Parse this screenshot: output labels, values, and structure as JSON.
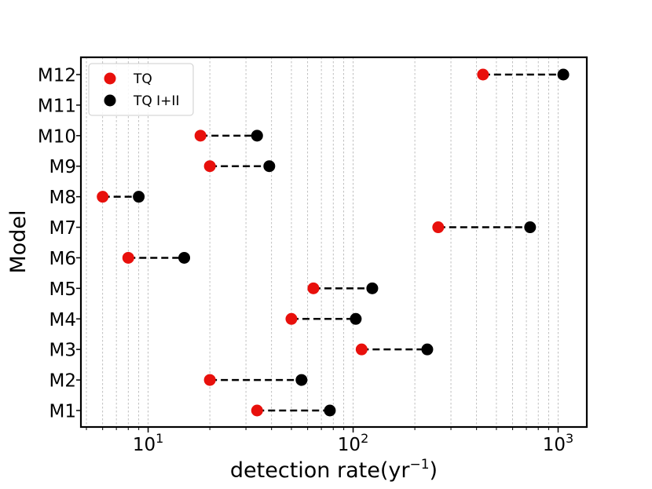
{
  "chart_data": {
    "type": "scatter",
    "title": "",
    "xlabel": "detection rate(yr",
    "xlabel_sup": "−1",
    "xlabel_close": ")",
    "ylabel": "Model",
    "xscale": "log",
    "xlim": [
      4.7,
      1380
    ],
    "x_tick_labels": [
      {
        "value": 10,
        "base": "10",
        "exp": "1"
      },
      {
        "value": 100,
        "base": "10",
        "exp": "2"
      },
      {
        "value": 1000,
        "base": "10",
        "exp": "3"
      }
    ],
    "grid": "vertical dashed minor+major",
    "legend_position": "top-left",
    "categories": [
      "M1",
      "M2",
      "M3",
      "M4",
      "M5",
      "M6",
      "M7",
      "M8",
      "M9",
      "M10",
      "M11",
      "M12"
    ],
    "series": [
      {
        "name": "TQ",
        "color": "#e8100c",
        "values": [
          34,
          20,
          110,
          50,
          64,
          8,
          260,
          6,
          20,
          18,
          null,
          430
        ]
      },
      {
        "name": "TQ I+II",
        "color": "#000000",
        "values": [
          77,
          56,
          230,
          103,
          124,
          15,
          730,
          9,
          39,
          34,
          null,
          1060
        ]
      }
    ],
    "connector": {
      "style": "dashed",
      "color": "#000000"
    }
  }
}
